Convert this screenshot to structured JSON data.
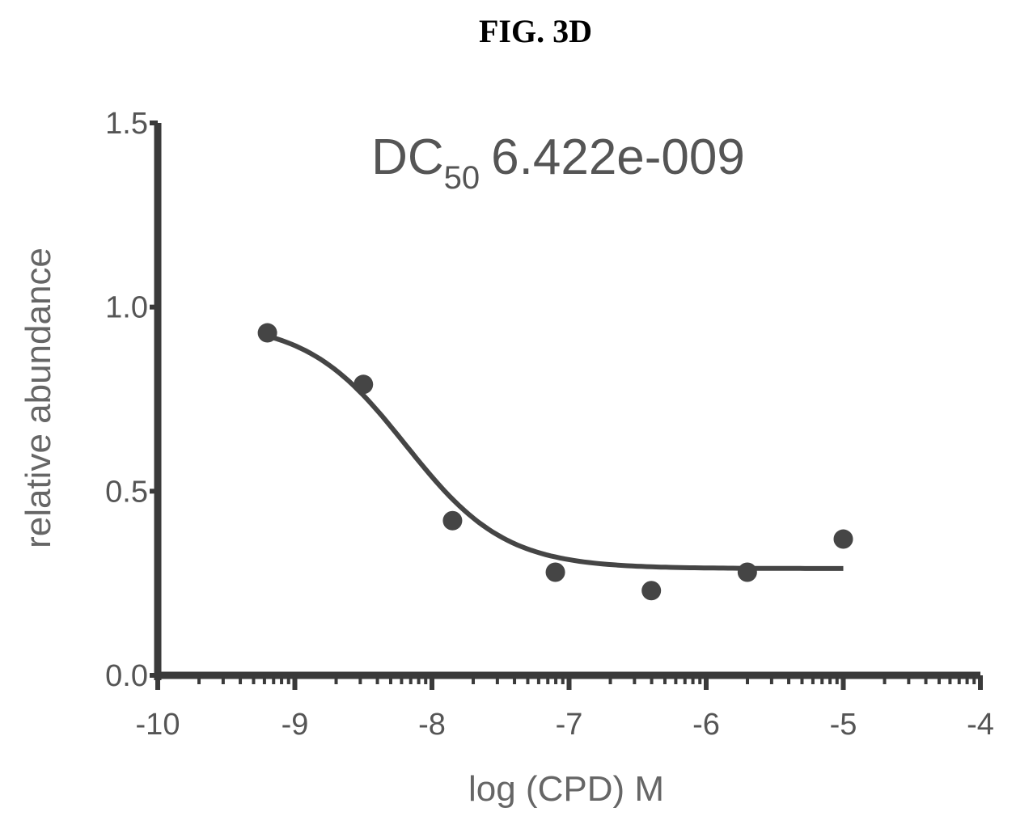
{
  "figure_label": "FIG. 3D",
  "chart_data": {
    "type": "scatter",
    "title": "",
    "xlabel": "log (CPD) M",
    "ylabel": "relative abundance",
    "xlim": [
      -10,
      -4
    ],
    "ylim": [
      0.0,
      1.5
    ],
    "x_ticks": [
      -10,
      -9,
      -8,
      -7,
      -6,
      -5,
      -4
    ],
    "x_tick_labels": [
      "-10",
      "-9",
      "-8",
      "-7",
      "-6",
      "-5",
      "-4"
    ],
    "y_ticks": [
      0.0,
      0.5,
      1.0,
      1.5
    ],
    "y_tick_labels": [
      "0.0",
      "0.5",
      "1.0",
      "1.5"
    ],
    "annotation": {
      "prefix": "DC",
      "subscript": "50",
      "value": "6.422e-009"
    },
    "points": [
      {
        "x": -9.2,
        "y": 0.93
      },
      {
        "x": -8.5,
        "y": 0.79
      },
      {
        "x": -7.85,
        "y": 0.42
      },
      {
        "x": -7.1,
        "y": 0.28
      },
      {
        "x": -6.4,
        "y": 0.23
      },
      {
        "x": -5.7,
        "y": 0.28
      },
      {
        "x": -5.0,
        "y": 0.37
      }
    ],
    "fit_curve": {
      "model": "sigmoid",
      "top": 0.96,
      "bottom": 0.29,
      "logDC50": -8.19,
      "hill_slope": 1.2,
      "x_range": [
        -9.2,
        -5.0
      ]
    },
    "grid": false,
    "legend": false,
    "colors": {
      "axis": "#3a3a3a",
      "marks": "#454545",
      "text": "#555555"
    }
  }
}
